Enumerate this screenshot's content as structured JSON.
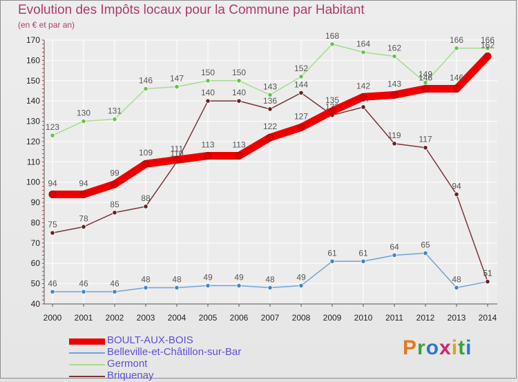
{
  "title": "Evolution des Impôts locaux pour la Commune par Habitant",
  "subtitle": "(en € et par an)",
  "logo": {
    "letters": [
      "P",
      "r",
      "o",
      "x",
      "i",
      "t",
      "i"
    ]
  },
  "chart_data": {
    "type": "line",
    "title": "Evolution des Impôts locaux pour la Commune par Habitant",
    "subtitle": "(en € et par an)",
    "xlabel": "",
    "ylabel": "",
    "x": [
      "2000",
      "2001",
      "2002",
      "2003",
      "2004",
      "2005",
      "2006",
      "2007",
      "2008",
      "2009",
      "2010",
      "2011",
      "2012",
      "2013",
      "2014"
    ],
    "ylim": [
      40,
      170
    ],
    "yticks": [
      40,
      50,
      60,
      70,
      80,
      90,
      100,
      110,
      120,
      130,
      140,
      150,
      160,
      170
    ],
    "grid": true,
    "legend_position": "bottom-left",
    "series": [
      {
        "name": "BOULT-AUX-BOIS",
        "color": "#ee0000",
        "dot": "#dd0000",
        "thick": true,
        "values": [
          94,
          94,
          99,
          109,
          111,
          113,
          113,
          122,
          127,
          135,
          142,
          143,
          146,
          146,
          162
        ]
      },
      {
        "name": "Belleville-et-Châtillon-sur-Bar",
        "color": "#6fa3d6",
        "dot": "#3f87c9",
        "thick": false,
        "values": [
          46,
          46,
          46,
          48,
          48,
          49,
          49,
          48,
          49,
          61,
          61,
          64,
          65,
          48,
          51
        ]
      },
      {
        "name": "Germont",
        "color": "#a6dc8c",
        "dot": "#66c444",
        "thick": false,
        "values": [
          123,
          130,
          131,
          146,
          147,
          150,
          150,
          143,
          152,
          168,
          164,
          162,
          149,
          166,
          166
        ]
      },
      {
        "name": "Briquenay",
        "color": "#7a3535",
        "dot": "#6a2020",
        "thick": false,
        "values": [
          75,
          78,
          85,
          88,
          110,
          140,
          140,
          136,
          144,
          133,
          137,
          119,
          117,
          94,
          51
        ]
      }
    ]
  }
}
